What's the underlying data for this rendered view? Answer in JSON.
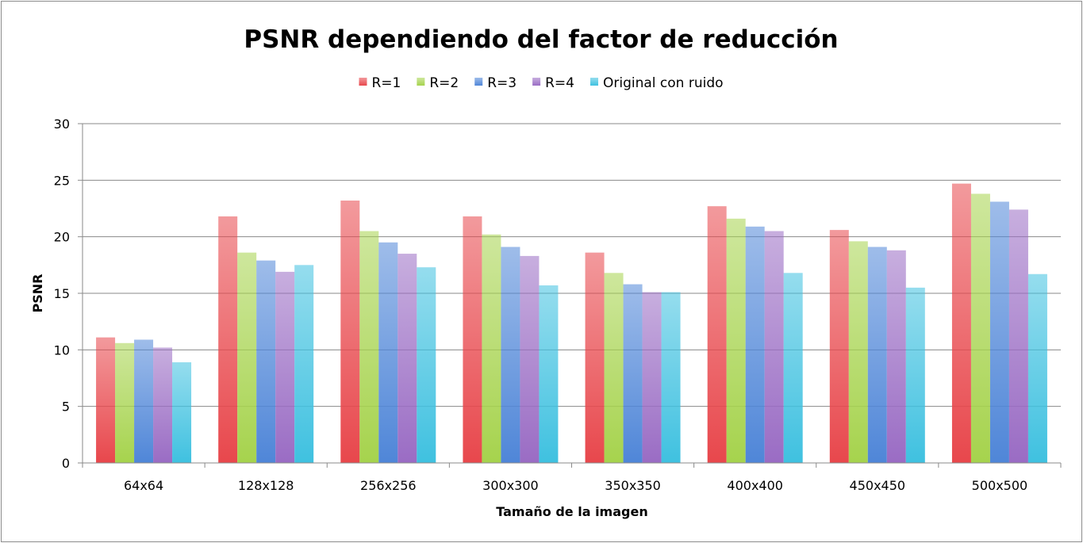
{
  "chart_data": {
    "type": "bar",
    "title": "PSNR dependiendo del factor de reducción",
    "xlabel": "Tamaño de la imagen",
    "ylabel": "PSNR",
    "ylim": [
      0,
      30
    ],
    "yticks": [
      0,
      5,
      10,
      15,
      20,
      25,
      30
    ],
    "grid": true,
    "legend_position": "top",
    "categories": [
      "64x64",
      "128x128",
      "256x256",
      "300x300",
      "350x350",
      "400x400",
      "450x450",
      "500x500"
    ],
    "series": [
      {
        "name": "R=1",
        "color": "#e8474c",
        "values": [
          11.1,
          21.8,
          23.2,
          21.8,
          18.6,
          22.7,
          20.6,
          24.7
        ]
      },
      {
        "name": "R=2",
        "color": "#a6d34d",
        "values": [
          10.6,
          18.6,
          20.5,
          20.2,
          16.8,
          21.6,
          19.6,
          23.8
        ]
      },
      {
        "name": "R=3",
        "color": "#4f86d8",
        "values": [
          10.9,
          17.9,
          19.5,
          19.1,
          15.8,
          20.9,
          19.1,
          23.1
        ]
      },
      {
        "name": "R=4",
        "color": "#9a6cc4",
        "values": [
          10.2,
          16.9,
          18.5,
          18.3,
          15.1,
          20.5,
          18.8,
          22.4
        ]
      },
      {
        "name": "Original con ruido",
        "color": "#3fc1e0",
        "values": [
          8.9,
          17.5,
          17.3,
          15.7,
          15.1,
          16.8,
          15.5,
          16.7
        ]
      }
    ]
  }
}
